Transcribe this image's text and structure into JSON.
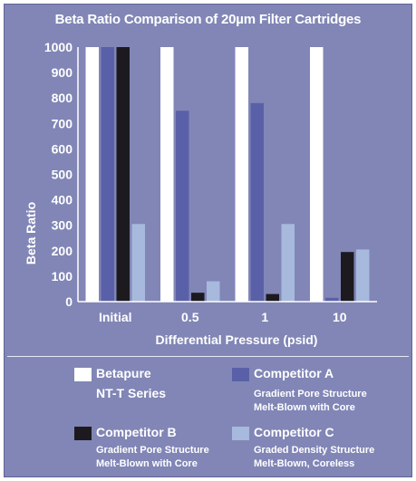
{
  "chart_data": {
    "type": "bar",
    "title": "Beta Ratio Comparison of 20µm Filter Cartridges",
    "xlabel": "Differential Pressure (psid)",
    "ylabel": "Beta Ratio",
    "ylim": [
      0,
      1000
    ],
    "yticks": [
      "0",
      "100",
      "200",
      "300",
      "400",
      "500",
      "600",
      "700",
      "800",
      "900",
      "1000"
    ],
    "categories": [
      "Initial",
      "0.5",
      "1",
      "10"
    ],
    "legend_position": "bottom",
    "series": [
      {
        "name": "Betapure NT-T Series",
        "color": "#ffffff",
        "values": [
          1000,
          1000,
          1000,
          1000
        ]
      },
      {
        "name": "Competitor A",
        "color": "#5a60a8",
        "values": [
          1000,
          750,
          780,
          15
        ]
      },
      {
        "name": "Competitor B",
        "color": "#1c1a1f",
        "values": [
          1000,
          35,
          30,
          195
        ]
      },
      {
        "name": "Competitor C",
        "color": "#a7b9dd",
        "values": [
          305,
          80,
          305,
          205
        ]
      }
    ]
  },
  "legend": [
    {
      "label_line1": "Betapure",
      "label_line2": "NT-T Series",
      "sub1": "",
      "sub2": ""
    },
    {
      "label_line1": "Competitor A",
      "label_line2": "",
      "sub1": "Gradient Pore Structure",
      "sub2": "Melt-Blown with Core"
    },
    {
      "label_line1": "Competitor B",
      "label_line2": "",
      "sub1": "Gradient Pore Structure",
      "sub2": "Melt-Blown with Core"
    },
    {
      "label_line1": "Competitor C",
      "label_line2": "",
      "sub1": "Graded Density Structure",
      "sub2": "Melt-Blown, Coreless"
    }
  ]
}
